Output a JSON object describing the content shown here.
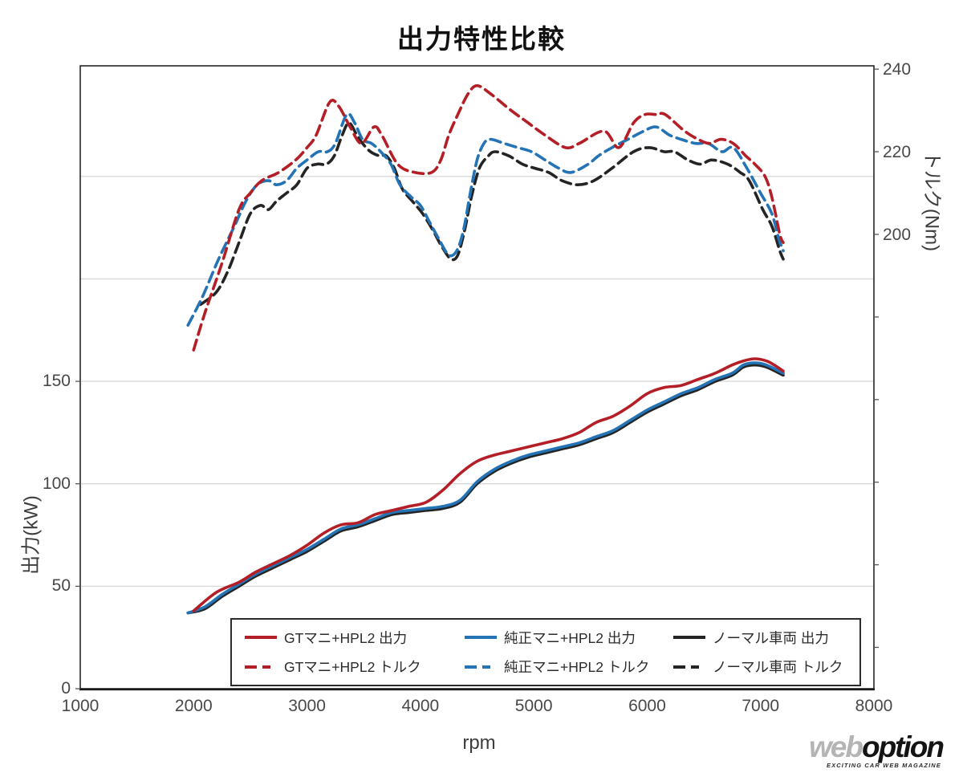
{
  "chart_data": {
    "type": "line",
    "title": "出力特性比較",
    "xlabel": "rpm",
    "ylabel_left": "出力(kW)",
    "ylabel_right": "トルク(Nm)",
    "x_axis": {
      "min": 1000,
      "max": 8000,
      "ticks": [
        1000,
        2000,
        3000,
        4000,
        5000,
        6000,
        7000,
        8000
      ]
    },
    "y_left": {
      "min": 0,
      "max": 304,
      "ticks": [
        0,
        50,
        100,
        150
      ],
      "grid": [
        50,
        100,
        150,
        200,
        250
      ],
      "unit": "kW"
    },
    "y_right": {
      "min": 90,
      "max": 240.8,
      "labeled_ticks": [
        200,
        220,
        240
      ],
      "minor_ticks": [
        100,
        120,
        140,
        160,
        180
      ],
      "unit": "Nm"
    },
    "grid": "horizontal-only",
    "legend_position": "bottom-inside",
    "colors": {
      "red": "#b41f27",
      "blue": "#2473b5",
      "black": "#242424",
      "gridline": "#d9d9d9",
      "border": "#262626"
    },
    "series": [
      {
        "name": "GTマニ+HPL2 出力",
        "color": "#b41f27",
        "style": "solid",
        "axis": "left",
        "points": [
          [
            2000,
            38
          ],
          [
            2200,
            47
          ],
          [
            2400,
            52
          ],
          [
            2550,
            57
          ],
          [
            2700,
            61
          ],
          [
            2850,
            65
          ],
          [
            3000,
            70
          ],
          [
            3150,
            76
          ],
          [
            3300,
            80
          ],
          [
            3450,
            81
          ],
          [
            3600,
            85
          ],
          [
            3750,
            87
          ],
          [
            3900,
            89
          ],
          [
            4050,
            91
          ],
          [
            4200,
            97
          ],
          [
            4350,
            105
          ],
          [
            4500,
            111
          ],
          [
            4650,
            114
          ],
          [
            4800,
            116
          ],
          [
            4950,
            118
          ],
          [
            5100,
            120
          ],
          [
            5250,
            122
          ],
          [
            5400,
            125
          ],
          [
            5550,
            130
          ],
          [
            5700,
            133
          ],
          [
            5850,
            138
          ],
          [
            6000,
            144
          ],
          [
            6150,
            147
          ],
          [
            6300,
            148
          ],
          [
            6450,
            151
          ],
          [
            6600,
            154
          ],
          [
            6750,
            158
          ],
          [
            6850,
            160
          ],
          [
            6950,
            161
          ],
          [
            7050,
            160
          ],
          [
            7120,
            158
          ],
          [
            7200,
            155
          ]
        ]
      },
      {
        "name": "純正マニ+HPL2 出力",
        "color": "#2473b5",
        "style": "solid",
        "axis": "left",
        "points": [
          [
            1950,
            37
          ],
          [
            2100,
            40
          ],
          [
            2250,
            46
          ],
          [
            2400,
            51
          ],
          [
            2550,
            56
          ],
          [
            2700,
            60
          ],
          [
            2850,
            64
          ],
          [
            3000,
            68
          ],
          [
            3150,
            73
          ],
          [
            3300,
            78
          ],
          [
            3450,
            80
          ],
          [
            3600,
            83
          ],
          [
            3750,
            86
          ],
          [
            3900,
            87
          ],
          [
            4050,
            88
          ],
          [
            4200,
            89
          ],
          [
            4350,
            92
          ],
          [
            4500,
            101
          ],
          [
            4650,
            107
          ],
          [
            4800,
            111
          ],
          [
            4950,
            114
          ],
          [
            5100,
            116
          ],
          [
            5250,
            118
          ],
          [
            5400,
            120
          ],
          [
            5550,
            123
          ],
          [
            5700,
            126
          ],
          [
            5850,
            131
          ],
          [
            6000,
            136
          ],
          [
            6150,
            140
          ],
          [
            6300,
            144
          ],
          [
            6450,
            147
          ],
          [
            6600,
            151
          ],
          [
            6750,
            154
          ],
          [
            6850,
            158
          ],
          [
            6950,
            159
          ],
          [
            7050,
            158
          ],
          [
            7200,
            154
          ]
        ]
      },
      {
        "name": "ノーマル車両 出力",
        "color": "#242424",
        "style": "solid",
        "axis": "left",
        "points": [
          [
            1950,
            37
          ],
          [
            2100,
            39
          ],
          [
            2250,
            45
          ],
          [
            2400,
            50
          ],
          [
            2550,
            55
          ],
          [
            2700,
            59
          ],
          [
            2850,
            63
          ],
          [
            3000,
            67
          ],
          [
            3150,
            72
          ],
          [
            3300,
            77
          ],
          [
            3450,
            79
          ],
          [
            3600,
            82
          ],
          [
            3750,
            85
          ],
          [
            3900,
            86
          ],
          [
            4050,
            87
          ],
          [
            4200,
            88
          ],
          [
            4350,
            91
          ],
          [
            4500,
            100
          ],
          [
            4650,
            106
          ],
          [
            4800,
            110
          ],
          [
            4950,
            113
          ],
          [
            5100,
            115
          ],
          [
            5250,
            117
          ],
          [
            5400,
            119
          ],
          [
            5550,
            122
          ],
          [
            5700,
            125
          ],
          [
            5850,
            130
          ],
          [
            6000,
            135
          ],
          [
            6150,
            139
          ],
          [
            6300,
            143
          ],
          [
            6450,
            146
          ],
          [
            6600,
            150
          ],
          [
            6750,
            153
          ],
          [
            6850,
            157
          ],
          [
            6950,
            158
          ],
          [
            7050,
            157
          ],
          [
            7200,
            153
          ]
        ]
      },
      {
        "name": "GTマニ+HPL2 トルク",
        "color": "#b41f27",
        "style": "dashed",
        "axis": "right",
        "points": [
          [
            2000,
            172
          ],
          [
            2100,
            181
          ],
          [
            2250,
            193
          ],
          [
            2400,
            206
          ],
          [
            2500,
            210
          ],
          [
            2600,
            213
          ],
          [
            2750,
            215
          ],
          [
            2900,
            218
          ],
          [
            3000,
            221
          ],
          [
            3080,
            224
          ],
          [
            3200,
            232
          ],
          [
            3280,
            231
          ],
          [
            3380,
            226
          ],
          [
            3480,
            222
          ],
          [
            3590,
            226
          ],
          [
            3660,
            224
          ],
          [
            3800,
            217
          ],
          [
            3950,
            215
          ],
          [
            4100,
            215
          ],
          [
            4180,
            218
          ],
          [
            4250,
            224
          ],
          [
            4330,
            229
          ],
          [
            4420,
            234
          ],
          [
            4500,
            236
          ],
          [
            4620,
            234
          ],
          [
            4800,
            230
          ],
          [
            4950,
            227
          ],
          [
            5100,
            224
          ],
          [
            5280,
            221
          ],
          [
            5400,
            222
          ],
          [
            5620,
            225
          ],
          [
            5750,
            221
          ],
          [
            5880,
            227
          ],
          [
            5980,
            229
          ],
          [
            6080,
            229
          ],
          [
            6160,
            229
          ],
          [
            6330,
            225
          ],
          [
            6450,
            223
          ],
          [
            6550,
            222
          ],
          [
            6650,
            223
          ],
          [
            6760,
            222
          ],
          [
            6870,
            219
          ],
          [
            6950,
            217
          ],
          [
            7040,
            214
          ],
          [
            7100,
            209
          ],
          [
            7170,
            200
          ],
          [
            7200,
            198
          ]
        ]
      },
      {
        "name": "純正マニ+HPL2 トルク",
        "color": "#2473b5",
        "style": "dashed",
        "axis": "right",
        "points": [
          [
            1950,
            178
          ],
          [
            2080,
            185
          ],
          [
            2220,
            194
          ],
          [
            2360,
            202
          ],
          [
            2460,
            208
          ],
          [
            2560,
            212
          ],
          [
            2660,
            213
          ],
          [
            2730,
            212
          ],
          [
            2820,
            213
          ],
          [
            2910,
            216
          ],
          [
            3000,
            218
          ],
          [
            3100,
            220
          ],
          [
            3180,
            220
          ],
          [
            3250,
            222
          ],
          [
            3350,
            229
          ],
          [
            3420,
            227
          ],
          [
            3490,
            223
          ],
          [
            3570,
            222
          ],
          [
            3650,
            220
          ],
          [
            3740,
            217
          ],
          [
            3820,
            212
          ],
          [
            3920,
            209
          ],
          [
            4000,
            207
          ],
          [
            4080,
            203
          ],
          [
            4160,
            199
          ],
          [
            4250,
            195
          ],
          [
            4320,
            196
          ],
          [
            4380,
            201
          ],
          [
            4440,
            210
          ],
          [
            4500,
            218
          ],
          [
            4560,
            222
          ],
          [
            4620,
            223
          ],
          [
            4740,
            222
          ],
          [
            4860,
            221
          ],
          [
            4980,
            220
          ],
          [
            5100,
            218
          ],
          [
            5220,
            216
          ],
          [
            5330,
            215
          ],
          [
            5480,
            217
          ],
          [
            5570,
            219
          ],
          [
            5690,
            221
          ],
          [
            5830,
            223
          ],
          [
            5970,
            225
          ],
          [
            6080,
            226
          ],
          [
            6200,
            224
          ],
          [
            6300,
            223
          ],
          [
            6430,
            222
          ],
          [
            6540,
            222
          ],
          [
            6660,
            220
          ],
          [
            6760,
            221
          ],
          [
            6880,
            216
          ],
          [
            7000,
            210
          ],
          [
            7100,
            205
          ],
          [
            7160,
            199
          ],
          [
            7200,
            196
          ]
        ]
      },
      {
        "name": "ノーマル車両 トルク",
        "color": "#242424",
        "style": "dashed",
        "axis": "right",
        "points": [
          [
            2060,
            183
          ],
          [
            2200,
            186
          ],
          [
            2300,
            191
          ],
          [
            2400,
            198
          ],
          [
            2500,
            205
          ],
          [
            2590,
            207
          ],
          [
            2660,
            206
          ],
          [
            2730,
            208
          ],
          [
            2820,
            210
          ],
          [
            2910,
            212
          ],
          [
            3000,
            216
          ],
          [
            3090,
            217
          ],
          [
            3170,
            217
          ],
          [
            3240,
            219
          ],
          [
            3310,
            224
          ],
          [
            3370,
            227
          ],
          [
            3440,
            224
          ],
          [
            3490,
            222
          ],
          [
            3560,
            220
          ],
          [
            3640,
            219
          ],
          [
            3700,
            219
          ],
          [
            3770,
            216
          ],
          [
            3840,
            211
          ],
          [
            3930,
            208
          ],
          [
            4020,
            205
          ],
          [
            4110,
            201
          ],
          [
            4190,
            197
          ],
          [
            4270,
            194
          ],
          [
            4330,
            195
          ],
          [
            4390,
            201
          ],
          [
            4450,
            209
          ],
          [
            4520,
            216
          ],
          [
            4600,
            219
          ],
          [
            4660,
            220
          ],
          [
            4780,
            219
          ],
          [
            4900,
            217
          ],
          [
            5010,
            216
          ],
          [
            5130,
            215
          ],
          [
            5250,
            213
          ],
          [
            5390,
            212
          ],
          [
            5530,
            213
          ],
          [
            5690,
            216
          ],
          [
            5880,
            220
          ],
          [
            6020,
            221
          ],
          [
            6150,
            220
          ],
          [
            6240,
            220
          ],
          [
            6360,
            218
          ],
          [
            6470,
            217
          ],
          [
            6570,
            218
          ],
          [
            6710,
            217
          ],
          [
            6820,
            215
          ],
          [
            6900,
            213
          ],
          [
            7020,
            206
          ],
          [
            7100,
            202
          ],
          [
            7170,
            196
          ],
          [
            7200,
            194
          ]
        ]
      }
    ],
    "legend_order": [
      0,
      1,
      2,
      3,
      4,
      5
    ]
  },
  "watermark": {
    "part1": "web",
    "part2": "option",
    "tagline": "EXCITING CAR WEB MAGAZINE"
  }
}
